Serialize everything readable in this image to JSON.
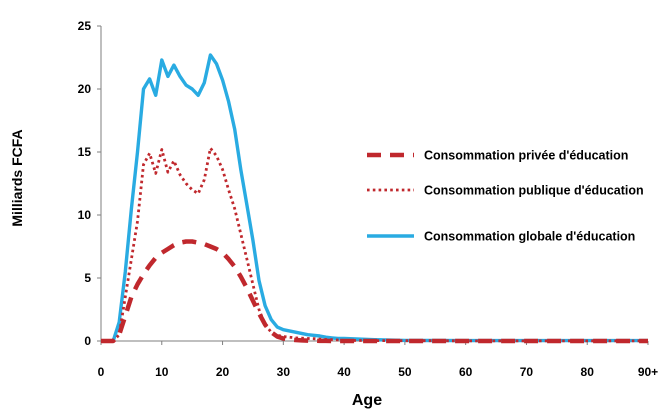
{
  "chart_data": {
    "type": "line",
    "title": "",
    "xlabel": "Age",
    "ylabel": "Milliards FCFA",
    "xlim": [
      0,
      90
    ],
    "ylim": [
      0,
      25
    ],
    "x_ticks": [
      "0",
      "10",
      "20",
      "30",
      "40",
      "50",
      "60",
      "70",
      "80",
      "90+"
    ],
    "y_ticks": [
      "0",
      "5",
      "10",
      "15",
      "20",
      "25"
    ],
    "grid": false,
    "legend_position": "right",
    "x": [
      0,
      1,
      2,
      3,
      4,
      5,
      6,
      7,
      8,
      9,
      10,
      11,
      12,
      13,
      14,
      15,
      16,
      17,
      18,
      19,
      20,
      21,
      22,
      23,
      24,
      25,
      26,
      27,
      28,
      29,
      30,
      31,
      32,
      33,
      34,
      35,
      36,
      37,
      38,
      39,
      40,
      45,
      50,
      55,
      60,
      65,
      70,
      75,
      80,
      85,
      90
    ],
    "series": [
      {
        "name": "Consommation privée d'éducation",
        "style": "dashed",
        "color": "#c0282d",
        "values": [
          0,
          0,
          0,
          0.5,
          2.0,
          3.5,
          4.5,
          5.3,
          6.0,
          6.6,
          7.0,
          7.3,
          7.6,
          7.8,
          7.9,
          7.9,
          7.8,
          7.7,
          7.5,
          7.3,
          7.0,
          6.5,
          5.9,
          5.1,
          4.2,
          3.2,
          2.2,
          1.3,
          0.7,
          0.35,
          0.2,
          0.12,
          0.08,
          0.05,
          0.03,
          0.02,
          0.01,
          0.01,
          0,
          0,
          0,
          0,
          0,
          0,
          0,
          0,
          0,
          0,
          0,
          0,
          0
        ]
      },
      {
        "name": "Consommation publique d'éducation",
        "style": "dotted",
        "color": "#c0282d",
        "values": [
          0,
          0,
          0,
          0.5,
          3.5,
          6.5,
          9.5,
          14.0,
          14.9,
          13.3,
          15.2,
          13.4,
          14.3,
          13.2,
          12.5,
          12.0,
          11.7,
          12.8,
          15.3,
          14.7,
          13.6,
          12.0,
          10.5,
          8.5,
          6.5,
          4.5,
          2.5,
          1.3,
          0.7,
          0.45,
          0.35,
          0.3,
          0.25,
          0.22,
          0.2,
          0.18,
          0.15,
          0.12,
          0.1,
          0.08,
          0.05,
          0.03,
          0.02,
          0.02,
          0.01,
          0.01,
          0.01,
          0.01,
          0.01,
          0.01,
          0.01
        ]
      },
      {
        "name": "Consommation globale d'éducation",
        "style": "solid",
        "color": "#29abe2",
        "values": [
          0,
          0,
          0,
          1.5,
          5.5,
          10.5,
          15.0,
          20.0,
          20.8,
          19.5,
          22.3,
          21.0,
          21.9,
          21.0,
          20.3,
          20.0,
          19.5,
          20.5,
          22.7,
          22.0,
          20.7,
          19.0,
          16.8,
          13.6,
          10.8,
          8.0,
          4.8,
          2.8,
          1.7,
          1.1,
          0.9,
          0.8,
          0.7,
          0.6,
          0.5,
          0.45,
          0.4,
          0.3,
          0.25,
          0.2,
          0.2,
          0.1,
          0.05,
          0.04,
          0.03,
          0.03,
          0.03,
          0.03,
          0.03,
          0.03,
          0.03
        ]
      }
    ]
  }
}
